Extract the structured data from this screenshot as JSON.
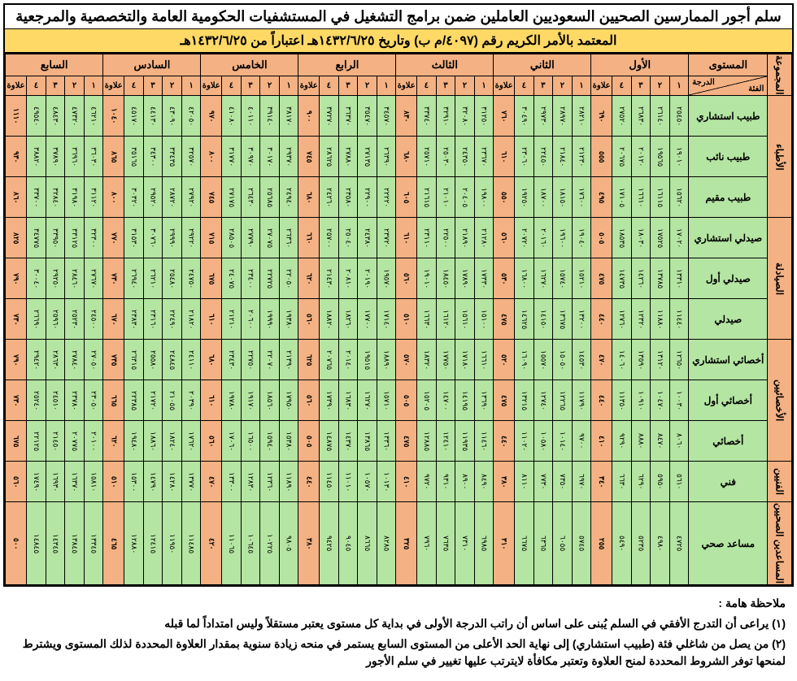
{
  "title_main": "سلم أجور الممارسين الصحيين السعوديين العاملين ضمن برامج التشغيل في المستشفيات الحكومية العامة والتخصصية والمرجعية",
  "title_sub": "المعتمد بالأمر الكريم رقم (٤٠٩٧/م ب) وتاريخ ١٤٣٢/٦/٢٥هـ اعتباراً من ١٤٣٢/٦/٢٥هـ",
  "col_group": "المجموعة",
  "col_level": "المستوى",
  "col_cat": "الفئة",
  "col_deg": "الدرجة",
  "levels": [
    "الأول",
    "الثاني",
    "الثالث",
    "الرابع",
    "الخامس",
    "السادس",
    "السابع"
  ],
  "degrees": [
    "١",
    "٢",
    "٣",
    "٤",
    "علاوة"
  ],
  "groups": [
    {
      "name": "الأطباء",
      "rows": [
        {
          "cat": "طبيب استشاري",
          "lv": [
            [
              "٢٥٤٥٠",
              "٢٦١٤٠",
              "٢٦٨٣٠",
              "٢٧٥٢٠",
              "٦٩٠"
            ],
            [
              "٢٨٢١٠",
              "٢٨٩٧٠",
              "٢٩٧٣٠",
              "٣٠٤٩٠",
              "٧٦٠"
            ],
            [
              "٣١٢٥٠",
              "٣٢٠٨٠",
              "٣٢٩١٠",
              "٣٣٧٤٠",
              "٨٣٠"
            ],
            [
              "٣٤٥٧٠",
              "٣٥٤٧٠",
              "٣٦٣٧٠",
              "٣٧٢٧٠",
              "٩٠٠"
            ],
            [
              "٣٨١٧٠",
              "٣٩١٤٠",
              "٤٠١١٠",
              "٤١٠٨٠",
              "٩٧٠"
            ],
            [
              "٤٢٠٥٠",
              "٤٣٠٩٠",
              "٤٤١٣٠",
              "٤٥١٧٠",
              "١٠٤٠"
            ],
            [
              "٤٦٢١٠",
              "٤٧٣٢٠",
              "٤٨٤٣٠",
              "٤٩٥٤٠",
              "١١١٠"
            ]
          ]
        },
        {
          "cat": "طبيب نائب",
          "lv": [
            [
              "١٩٠١٠",
              "١٩٥٦٥",
              "٢٠١٢٠",
              "٢٠٦٧٥",
              "٥٥٥"
            ],
            [
              "٢١٢٣٠",
              "٢١٨٤٠",
              "٢٢٤٥٠",
              "٢٣٠٦٠",
              "٦١٠"
            ],
            [
              "٢٣٦٧٠",
              "٢٤٣٥٠",
              "٢٥٠٣٠",
              "٢٥٧١٠",
              "٦٨٠"
            ],
            [
              "٢٦٣٩٠",
              "٢٧١٣٥",
              "٢٧٨٨٠",
              "٢٨٦٢٥",
              "٧٤٥"
            ],
            [
              "٢٩٣٧٠",
              "٣٠١٧٠",
              "٣٠٩٧٠",
              "٣١٧٧٠",
              "٨٠٠"
            ],
            [
              "٣٢٥٧٠",
              "٣٣٤٣٥",
              "٣٤٣٠٠",
              "٣٥١٦٥",
              "٨٦٥"
            ],
            [
              "٣٦٠٣٠",
              "٣٦٩٦٠",
              "٣٧٨٩٠",
              "٣٨٨٢٠",
              "٩٣٠"
            ]
          ]
        },
        {
          "cat": "طبيب مقيم",
          "lv": [
            [
              "١٥٦٢٠",
              "١٦١١٥",
              "١٦٦١٠",
              "١٧١٠٥",
              "٤٩٥"
            ],
            [
              "١٧٦٠٠",
              "١٨١٥٠",
              "١٨٧٠٠",
              "١٩٢٥٠",
              "٥٥٠"
            ],
            [
              "١٩٨٠٠",
              "٢٠٤٠٥",
              "٢١٠١٠",
              "٢١٦١٥",
              "٦٠٥"
            ],
            [
              "٢٢٢٢٠",
              "٢٢٩٠٠",
              "٢٣٥٨٠",
              "٢٤٢٦٠",
              "٦٨٠"
            ],
            [
              "٢٤٩٤٠",
              "٢٥٦٨٥",
              "٢٦٤٣٠",
              "٢٧١٧٥",
              "٧٤٥"
            ],
            [
              "٢٧٩٢٠",
              "٢٨٧٢٠",
              "٢٩٥٢٠",
              "٣٠٣٢٠",
              "٨٠٠"
            ],
            [
              "٣١١٢٠",
              "٣١٩٨٠",
              "٣٢٨٤٠",
              "٣٣٧٠٠",
              "٨٦٠"
            ]
          ]
        }
      ]
    },
    {
      "name": "الصيادلة",
      "rows": [
        {
          "cat": "صيدلي استشاري",
          "lv": [
            [
              "١٧٠٢٠",
              "١٧٥٢٥",
              "١٨٠٣٠",
              "١٨٥٣٥",
              "٥٠٥"
            ],
            [
              "١٩٠٤٠",
              "١٩٦٠٠",
              "٢٠١٦٠",
              "٢٠٧٢٠",
              "٥٦٠"
            ],
            [
              "٢١٢٨٠",
              "٢١٨٩٠",
              "٢٢٥٠٠",
              "٢٣١١٠",
              "٦١٠"
            ],
            [
              "٢٣٧٢٠",
              "٢٤٣٨٠",
              "٢٥٠٤٠",
              "٢٥٧٠٠",
              "٦٦٠"
            ],
            [
              "٢٦٣٦٠",
              "٢٧٠٧٥",
              "٢٧٧٩٠",
              "٢٨٥٠٥",
              "٧١٥"
            ],
            [
              "٢٩٢٢٠",
              "٢٩٩٩٠",
              "٣٠٧٦٠",
              "٣١٥٣٠",
              "٧٧٠"
            ],
            [
              "٣٢٣٠٠",
              "٣٣١٢٥",
              "٣٣٩٥٠",
              "٣٤٧٧٥",
              "٨٢٥"
            ]
          ]
        },
        {
          "cat": "صيدلي أول",
          "lv": [
            [
              "١٣٣١٠",
              "١٣٧٨٥",
              "١٤٢٦٠",
              "١٤٧٣٥",
              "٤٧٥"
            ],
            [
              "١٥٢١٠",
              "١٥٧٤٠",
              "١٦٢٧٠",
              "١٦٨٠٠",
              "٥٣٠"
            ],
            [
              "١٧٣٣٠",
              "١٧٨٩٠",
              "١٨٤٥٠",
              "١٩٠١٠",
              "٥٦٠"
            ],
            [
              "١٩٥٧٠",
              "٢٠١٩٠",
              "٢٠٨١٠",
              "٢١٤٣٠",
              "٦٢٠"
            ],
            [
              "٢٢٠٥٠",
              "٢٢٧٢٥",
              "٢٣٤٠٠",
              "٢٤٠٧٥",
              "٦٧٥"
            ],
            [
              "٢٤٧٥٠",
              "٢٥٤٨٠",
              "٢٦٢١٠",
              "٢٦٩٤٠",
              "٧٣٠"
            ],
            [
              "٢٧٦٧٠",
              "٢٨٤٦٠",
              "٢٩٢٥٠",
              "٣٠٠٤٠",
              "٧٩٠"
            ]
          ]
        },
        {
          "cat": "صيدلي",
          "lv": [
            [
              "١١٤٤٠",
              "١١٨٨٠",
              "١٢٣٢٠",
              "١٢٧٦٠",
              "٤٤٠"
            ],
            [
              "١٣٢٠٠",
              "١٣٦٧٥",
              "١٤١٥٠",
              "١٤٦٢٥",
              "٤٧٥"
            ],
            [
              "١٥١٠٠",
              "١٥٦١٠",
              "١٦١٢٠",
              "١٦٦٣٠",
              "٥١٠"
            ],
            [
              "١٧١٤٠",
              "١٧٧٠٠",
              "١٨٢٦٠",
              "١٨٨٢٠",
              "٥٦٠"
            ],
            [
              "١٩٣٨٠",
              "١٩٩٩٠",
              "٢٠٦٠٠",
              "٢١٢١٠",
              "٦١٠"
            ],
            [
              "٢١٨٢٠",
              "٢٢٤٩٠",
              "٢٣١٦٠",
              "٢٣٨٣٠",
              "٦٧٠"
            ],
            [
              "٢٤٥٠٠",
              "٢٥٢٣٠",
              "٢٥٩٦٠",
              "٢٦٦٩٠",
              "٧٣٠"
            ]
          ]
        }
      ]
    },
    {
      "name": "الأخصائيين",
      "rows": [
        {
          "cat": "أخصائي استشاري",
          "lv": [
            [
              "١٢٦٥٠",
              "١٣١٢٠",
              "١٣٥٩٠",
              "١٤٠٦٠",
              "٤٧٠"
            ],
            [
              "١٤٥٣٠",
              "١٥٠٥٠",
              "١٥٥٧٠",
              "١٦٠٩٠",
              "٥٢٠"
            ],
            [
              "١٦٦١٠",
              "١٧١٨٠",
              "١٧٧٥٠",
              "١٨٣٢٠",
              "٥٧٠"
            ],
            [
              "١٨٨٩٠",
              "١٩٥١٥",
              "٢٠١٤٠",
              "٢٠٧٦٥",
              "٦٢٥"
            ],
            [
              "٢١٣٩٠",
              "٢٢٠٧٠",
              "٢٢٧٥٠",
              "٢٣٤٣٠",
              "٦٨٠"
            ],
            [
              "٢٤١١٠",
              "٢٤٨٤٥",
              "٢٥٥٨٠",
              "٢٦٣١٥",
              "٧٣٥"
            ],
            [
              "٢٧٠٥٠",
              "٢٧٨٤٠",
              "٢٨٦٣٠",
              "٢٩٤٢٠",
              "٧٩٠"
            ]
          ]
        },
        {
          "cat": "أخصائي أول",
          "lv": [
            [
              "١٠٠٣٠",
              "١٠٤٧٠",
              "١٠٩١٠",
              "١١٣٥٠",
              "٤٤٠"
            ],
            [
              "١١٧٩٠",
              "١٢٢٦٥",
              "١٢٧٤٠",
              "١٣٢١٥",
              "٤٧٥"
            ],
            [
              "١٣٦٩٠",
              "١٤١٩٥",
              "١٤٧٠٠",
              "١٥٢٠٥",
              "٥٠٥"
            ],
            [
              "١٥٧١٠",
              "١٦٢٧٠",
              "١٦٨٣٠",
              "١٧٣٩٠",
              "٥٦٠"
            ],
            [
              "١٧٩٥٠",
              "١٨٥٦٠",
              "١٩١٧٠",
              "١٩٧٨٠",
              "٦١٠"
            ],
            [
              "٢٠٣٩٠",
              "٢١٠٥٥",
              "٢١٧٢٠",
              "٢٢٣٨٥",
              "٦٦٥"
            ],
            [
              "٢٣٠٥٠",
              "٢٣٧٨٠",
              "٢٤٥١٠",
              "٢٥٢٤٠",
              "٧٣٠"
            ]
          ]
        },
        {
          "cat": "أخصائي",
          "lv": [
            [
              "٨٠٦٠",
              "٨٤٧٠",
              "٨٨٨٠",
              "٩٢٩٠",
              "٤١٠"
            ],
            [
              "٩٧٠٠",
              "١٠١٤٠",
              "١٠٥٨٠",
              "١١٠٢٠",
              "٤٤٠"
            ],
            [
              "١١٤٦٠",
              "١١٩٣٥",
              "١٢٤١٠",
              "١٢٨٨٥",
              "٤٧٥"
            ],
            [
              "١٣٣٦٠",
              "١٣٨٦٥",
              "١٤٣٧٠",
              "١٤٨٧٥",
              "٥٠٥"
            ],
            [
              "١٥٣٨٠",
              "١٥٩٤٠",
              "١٦٥٠٠",
              "١٧٠٦٠",
              "٥٦٠"
            ],
            [
              "١٧٦٢٠",
              "١٨٢٤٠",
              "١٨٨٦٠",
              "١٩٤٨٠",
              "٦٢٠"
            ],
            [
              "٢٠١٠٠",
              "٢٠٧٧٥",
              "٢١٤٥٠",
              "٢٢١٢٥",
              "٦٧٥"
            ]
          ]
        }
      ]
    },
    {
      "name": "الفنيين",
      "rows": [
        {
          "cat": "فني",
          "lv": [
            [
              "٥٦١٠",
              "٥٩٥٠",
              "٦٢٩٠",
              "٦٦٣٠",
              "٣٤٠"
            ],
            [
              "٦٩٧٠",
              "٧٣٥٠",
              "٧٧٣٠",
              "٨١١٠",
              "٣٨٠"
            ],
            [
              "٨٤٩٠",
              "٨٩٠٠",
              "٩٣١٠",
              "٩٧٢٠",
              "٤١٠"
            ],
            [
              "١٠١٣٠",
              "١٠٥٧٠",
              "١١٠١٠",
              "١١٤٥٠",
              "٤٤٠"
            ],
            [
              "١١٨٩٠",
              "١٢٣٦٠",
              "١٢٨٣٠",
              "١٣٣٠٠",
              "٤٧٠"
            ],
            [
              "١٣٧٧٠",
              "١٤٢٨٠",
              "١٤٧٩٠",
              "١٥٣٠٠",
              "٥١٠"
            ],
            [
              "١٥٨١٠",
              "١٦٣٧٠",
              "١٦٩٣٠",
              "١٧٤٩٠",
              "٥٦٠"
            ]
          ]
        }
      ]
    },
    {
      "name": "المساعدين الصحيين",
      "rows": [
        {
          "cat": "مساعد صحي",
          "lv": [
            [
              "٤٧٢٥",
              "٤٩٨٠",
              "٥٢٣٥",
              "٥٤٩٠",
              "٢٥٥"
            ],
            [
              "٥٧٤٥",
              "٦٠٥٥",
              "٦٣٦٥",
              "٦٦٧٥",
              "٣١٠"
            ],
            [
              "٦٩٨٥",
              "٧٣١٠",
              "٧٦٣٥",
              "٧٩٦٠",
              "٣٢٥"
            ],
            [
              "٨٢٨٥",
              "٨٦٦٥",
              "٩٠٤٥",
              "٩٤٢٥",
              "٣٨٠"
            ],
            [
              "٩٨٠٥",
              "١٠٢٢٥",
              "١٠٦٤٥",
              "١١٠٦٥",
              "٤٢٠"
            ],
            [
              "١١٤٨٥",
              "١١٩٥٠",
              "١٢٤١٥",
              "١٢٨٨٠",
              "٤٦٥"
            ],
            [
              "١٣٣٤٥",
              "١٣٨٤٥",
              "١٤٣٤٥",
              "١٤٨٤٥",
              "٥٠٠"
            ]
          ]
        }
      ]
    }
  ],
  "notes_title": "ملاحظة هامة :",
  "note1": "(١) يراعى أن التدرج الأفقي في السلم يُبنى على اساس أن راتب الدرجة الأولى في بداية كل مستوى يعتبر مستقلاً وليس امتداداً لما قبله",
  "note2": "(٢) من يصل من شاغلي فئة (طبيب استشاري) إلى نهاية الحد الأعلى من المستوى السابع يستمر في منحه زيادة سنوية بمقدار العلاوة المحددة لذلك المستوى ويشترط لمنحها توفر الشروط المحددة لمنح العلاوة وتعتبر مكافأة لايترتب عليها تغيير في سلم الأجور"
}
